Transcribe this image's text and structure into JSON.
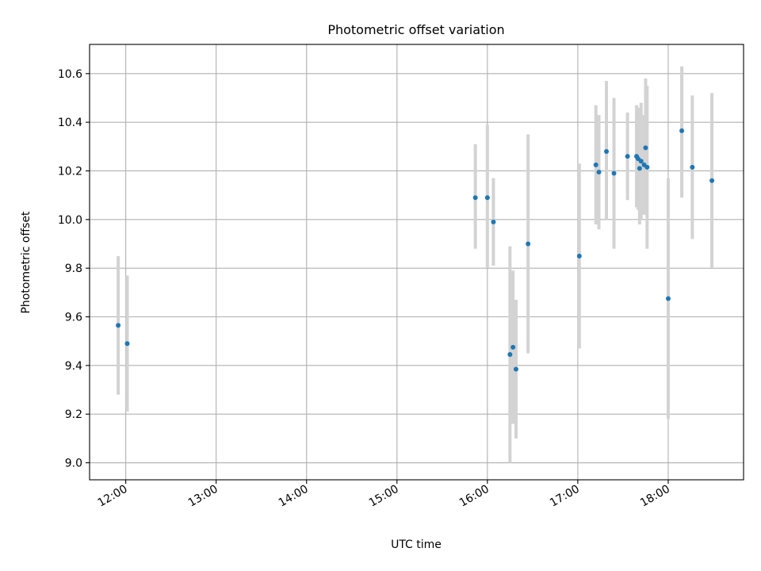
{
  "chart_data": {
    "type": "scatter",
    "title": "Photometric offset variation",
    "xlabel": "UTC time",
    "ylabel": "Photometric offset",
    "x_tick_labels": [
      "12:00",
      "13:00",
      "14:00",
      "15:00",
      "16:00",
      "17:00",
      "18:00"
    ],
    "x_ticks": [
      "12:00",
      "13:00",
      "14:00",
      "15:00",
      "16:00",
      "17:00",
      "18:00"
    ],
    "xlim": [
      "11:36",
      "18:50"
    ],
    "y_ticks": [
      9.0,
      9.2,
      9.4,
      9.6,
      9.8,
      10.0,
      10.2,
      10.4,
      10.6
    ],
    "y_tick_labels": [
      "9.0",
      "9.2",
      "9.4",
      "9.6",
      "9.8",
      "10.0",
      "10.2",
      "10.4",
      "10.6"
    ],
    "ylim": [
      8.93,
      10.72
    ],
    "grid": true,
    "legend": "none",
    "colors": {
      "point": "#1f77b4",
      "errorbar": "#d3d3d3",
      "grid": "#b0b0b0"
    },
    "points": [
      {
        "x": "11:55",
        "y": 9.565,
        "err_low": 9.28,
        "err_high": 9.85
      },
      {
        "x": "12:01",
        "y": 9.49,
        "err_low": 9.21,
        "err_high": 9.77
      },
      {
        "x": "15:52",
        "y": 10.09,
        "err_low": 9.88,
        "err_high": 10.31
      },
      {
        "x": "16:00",
        "y": 10.09,
        "err_low": 9.8,
        "err_high": 10.39
      },
      {
        "x": "16:04",
        "y": 9.99,
        "err_low": 9.81,
        "err_high": 10.17
      },
      {
        "x": "16:15",
        "y": 9.445,
        "err_low": 9.0,
        "err_high": 9.89
      },
      {
        "x": "16:17",
        "y": 9.475,
        "err_low": 9.16,
        "err_high": 9.79
      },
      {
        "x": "16:19",
        "y": 9.385,
        "err_low": 9.1,
        "err_high": 9.67
      },
      {
        "x": "16:27",
        "y": 9.9,
        "err_low": 9.45,
        "err_high": 10.35
      },
      {
        "x": "17:01",
        "y": 9.85,
        "err_low": 9.47,
        "err_high": 10.23
      },
      {
        "x": "17:12",
        "y": 10.225,
        "err_low": 9.98,
        "err_high": 10.47
      },
      {
        "x": "17:14",
        "y": 10.195,
        "err_low": 9.96,
        "err_high": 10.43
      },
      {
        "x": "17:19",
        "y": 10.28,
        "err_low": 10.0,
        "err_high": 10.57
      },
      {
        "x": "17:24",
        "y": 10.19,
        "err_low": 9.88,
        "err_high": 10.5
      },
      {
        "x": "17:33",
        "y": 10.26,
        "err_low": 10.08,
        "err_high": 10.44
      },
      {
        "x": "17:39",
        "y": 10.26,
        "err_low": 10.05,
        "err_high": 10.47
      },
      {
        "x": "17:40",
        "y": 10.25,
        "err_low": 10.04,
        "err_high": 10.46
      },
      {
        "x": "17:41",
        "y": 10.21,
        "err_low": 9.98,
        "err_high": 10.45
      },
      {
        "x": "17:42",
        "y": 10.24,
        "err_low": 10.0,
        "err_high": 10.48
      },
      {
        "x": "17:44",
        "y": 10.225,
        "err_low": 10.02,
        "err_high": 10.43
      },
      {
        "x": "17:45",
        "y": 10.295,
        "err_low": 10.03,
        "err_high": 10.58
      },
      {
        "x": "17:46",
        "y": 10.215,
        "err_low": 9.88,
        "err_high": 10.55
      },
      {
        "x": "18:00",
        "y": 9.675,
        "err_low": 9.18,
        "err_high": 10.17
      },
      {
        "x": "18:09",
        "y": 10.365,
        "err_low": 10.09,
        "err_high": 10.63
      },
      {
        "x": "18:16",
        "y": 10.215,
        "err_low": 9.92,
        "err_high": 10.51
      },
      {
        "x": "18:29",
        "y": 10.16,
        "err_low": 9.8,
        "err_high": 10.52
      }
    ]
  }
}
